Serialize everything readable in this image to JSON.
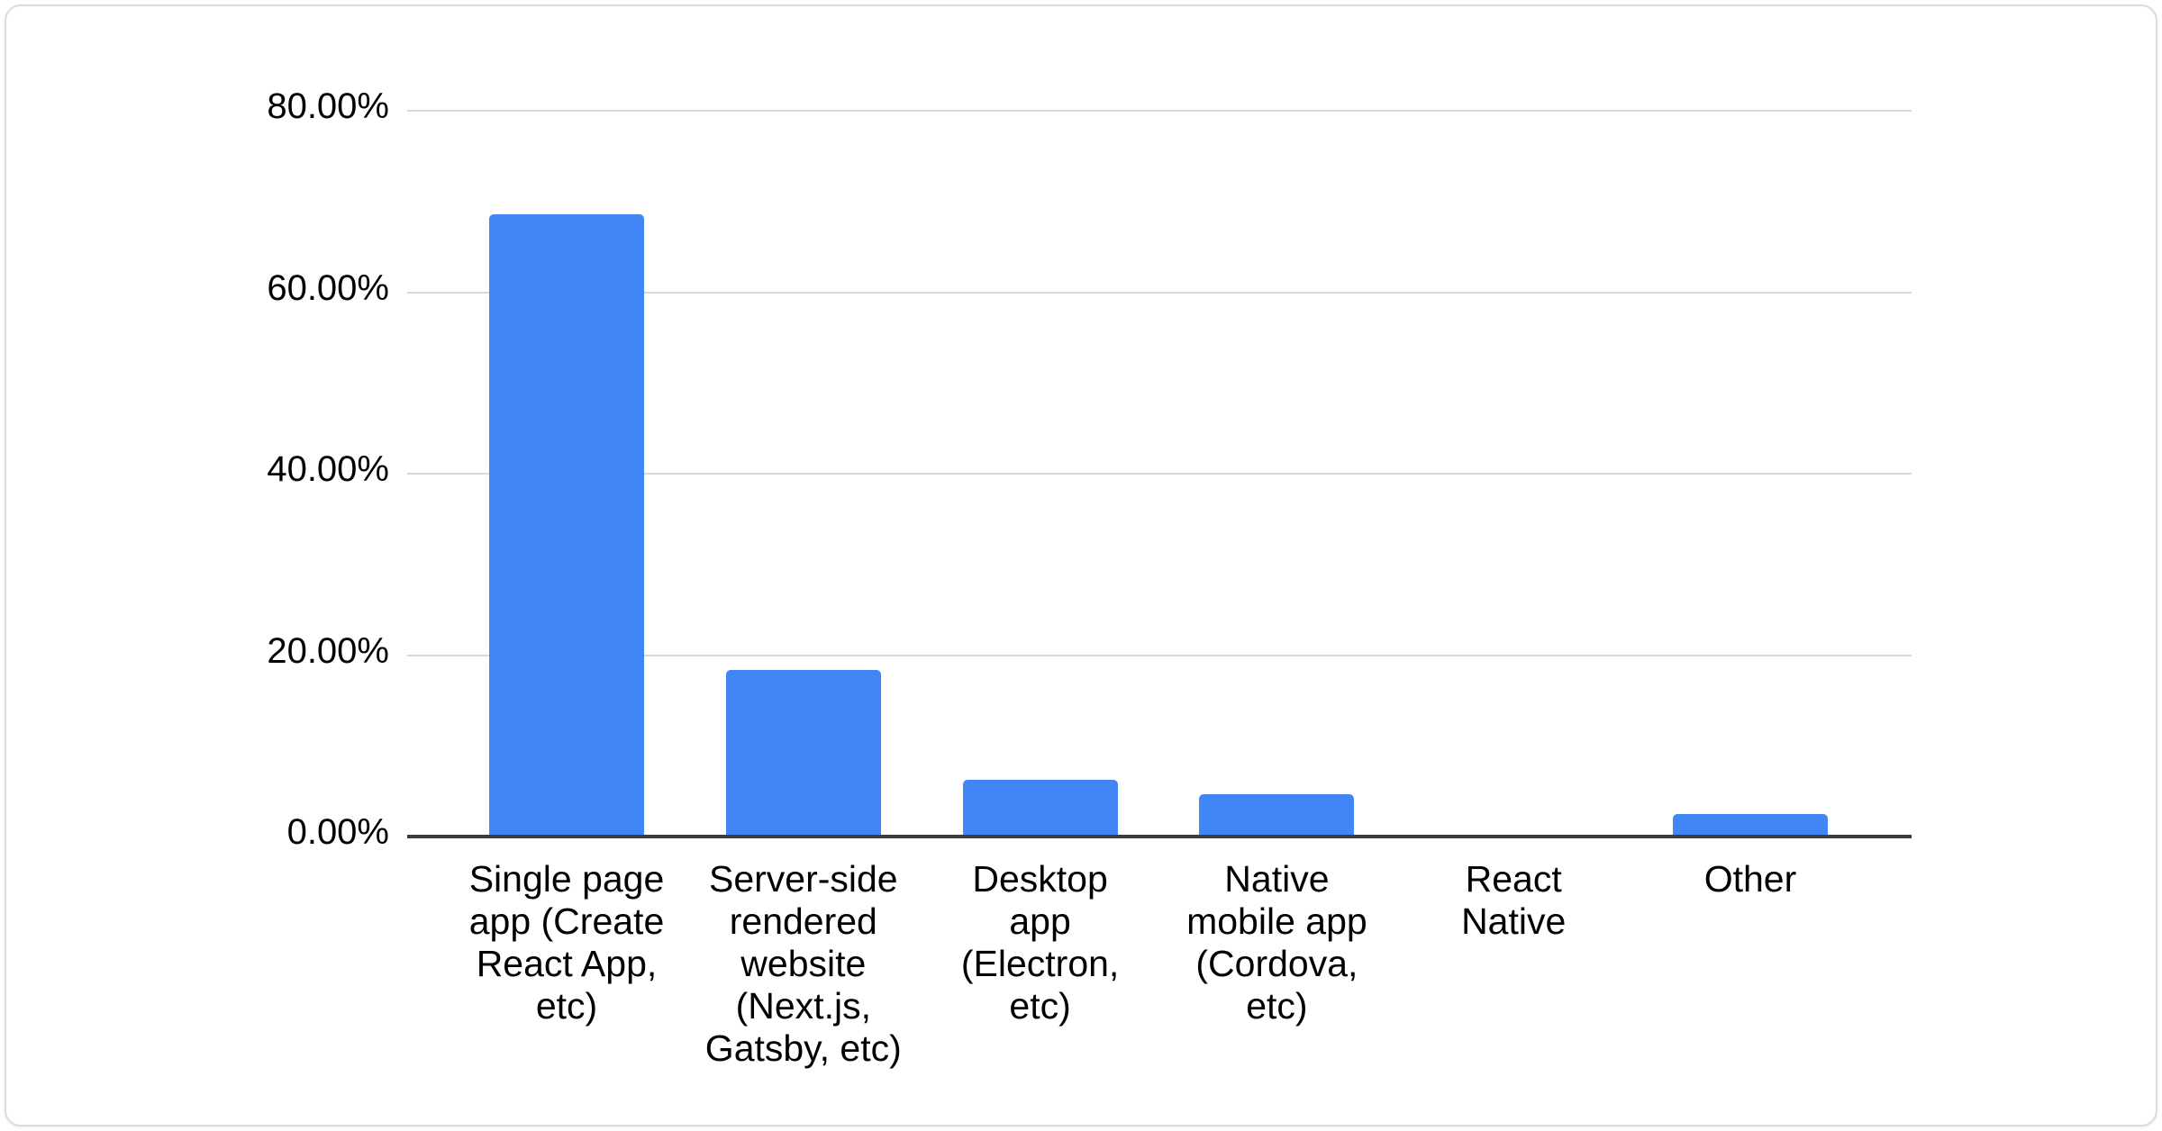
{
  "chart_data": {
    "type": "bar",
    "title": "",
    "xlabel": "",
    "ylabel": "",
    "unit": "%",
    "categories": [
      "Single page app (Create React App, etc)",
      "Server-side rendered website (Next.js, Gatsby, etc)",
      "Desktop app (Electron, etc)",
      "Native mobile app (Cordova, etc)",
      "React Native",
      "Other"
    ],
    "category_lines": [
      [
        "Single page",
        "app (Create",
        "React App,",
        "etc)"
      ],
      [
        "Server-side",
        "rendered",
        "website",
        "(Next.js,",
        "Gatsby, etc)"
      ],
      [
        "Desktop",
        "app",
        "(Electron,",
        "etc)"
      ],
      [
        "Native",
        "mobile app",
        "(Cordova,",
        "etc)"
      ],
      [
        "React",
        "Native"
      ],
      [
        "Other"
      ]
    ],
    "values": [
      68.4,
      18.2,
      6.1,
      4.5,
      0,
      2.3
    ],
    "y_ticks": [
      {
        "value": 0,
        "label": "0.00%"
      },
      {
        "value": 20,
        "label": "20.00%"
      },
      {
        "value": 40,
        "label": "40.00%"
      },
      {
        "value": 60,
        "label": "60.00%"
      },
      {
        "value": 80,
        "label": "80.00%"
      }
    ],
    "ylim": [
      0,
      80
    ],
    "grid": true,
    "legend_position": "none",
    "colors": {
      "bar": "#4285f4",
      "gridline": "#d9d9d9",
      "baseline": "#3c3c3c",
      "label": "#000000"
    }
  }
}
